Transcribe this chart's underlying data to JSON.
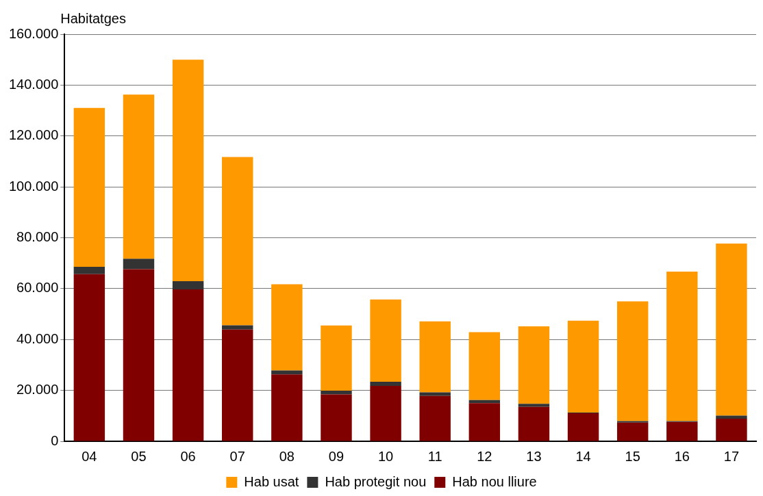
{
  "chart_data": {
    "type": "bar",
    "ylabel": "Habitatges",
    "stacked": true,
    "grid": "y",
    "legend": "bottom",
    "categories": [
      "04",
      "05",
      "06",
      "07",
      "08",
      "09",
      "10",
      "11",
      "12",
      "13",
      "14",
      "15",
      "16",
      "17"
    ],
    "series": [
      {
        "name": "Hab nou lliure",
        "color": "#800000",
        "values": [
          65700,
          67600,
          59700,
          43900,
          26300,
          18400,
          21800,
          17800,
          15000,
          13500,
          11000,
          7300,
          7600,
          8900
        ]
      },
      {
        "name": "Hab protegit nou",
        "color": "#333333",
        "values": [
          2900,
          4100,
          3200,
          1700,
          1500,
          1500,
          1600,
          1400,
          1200,
          1200,
          300,
          600,
          300,
          1200
        ]
      },
      {
        "name": "Hab usat",
        "color": "#ff9900",
        "values": [
          62400,
          64600,
          87100,
          66100,
          33900,
          25600,
          32300,
          27900,
          26700,
          30500,
          36100,
          47100,
          58800,
          67600
        ]
      }
    ],
    "ylim": [
      0,
      160000
    ],
    "yticks": [
      {
        "value": 0,
        "label": "0"
      },
      {
        "value": 20000,
        "label": "20.000"
      },
      {
        "value": 40000,
        "label": "40.000"
      },
      {
        "value": 60000,
        "label": "60.000"
      },
      {
        "value": 80000,
        "label": "80.000"
      },
      {
        "value": 100000,
        "label": "100.000"
      },
      {
        "value": 120000,
        "label": "120.000"
      },
      {
        "value": 140000,
        "label": "140.000"
      },
      {
        "value": 160000,
        "label": "160.000"
      }
    ]
  }
}
